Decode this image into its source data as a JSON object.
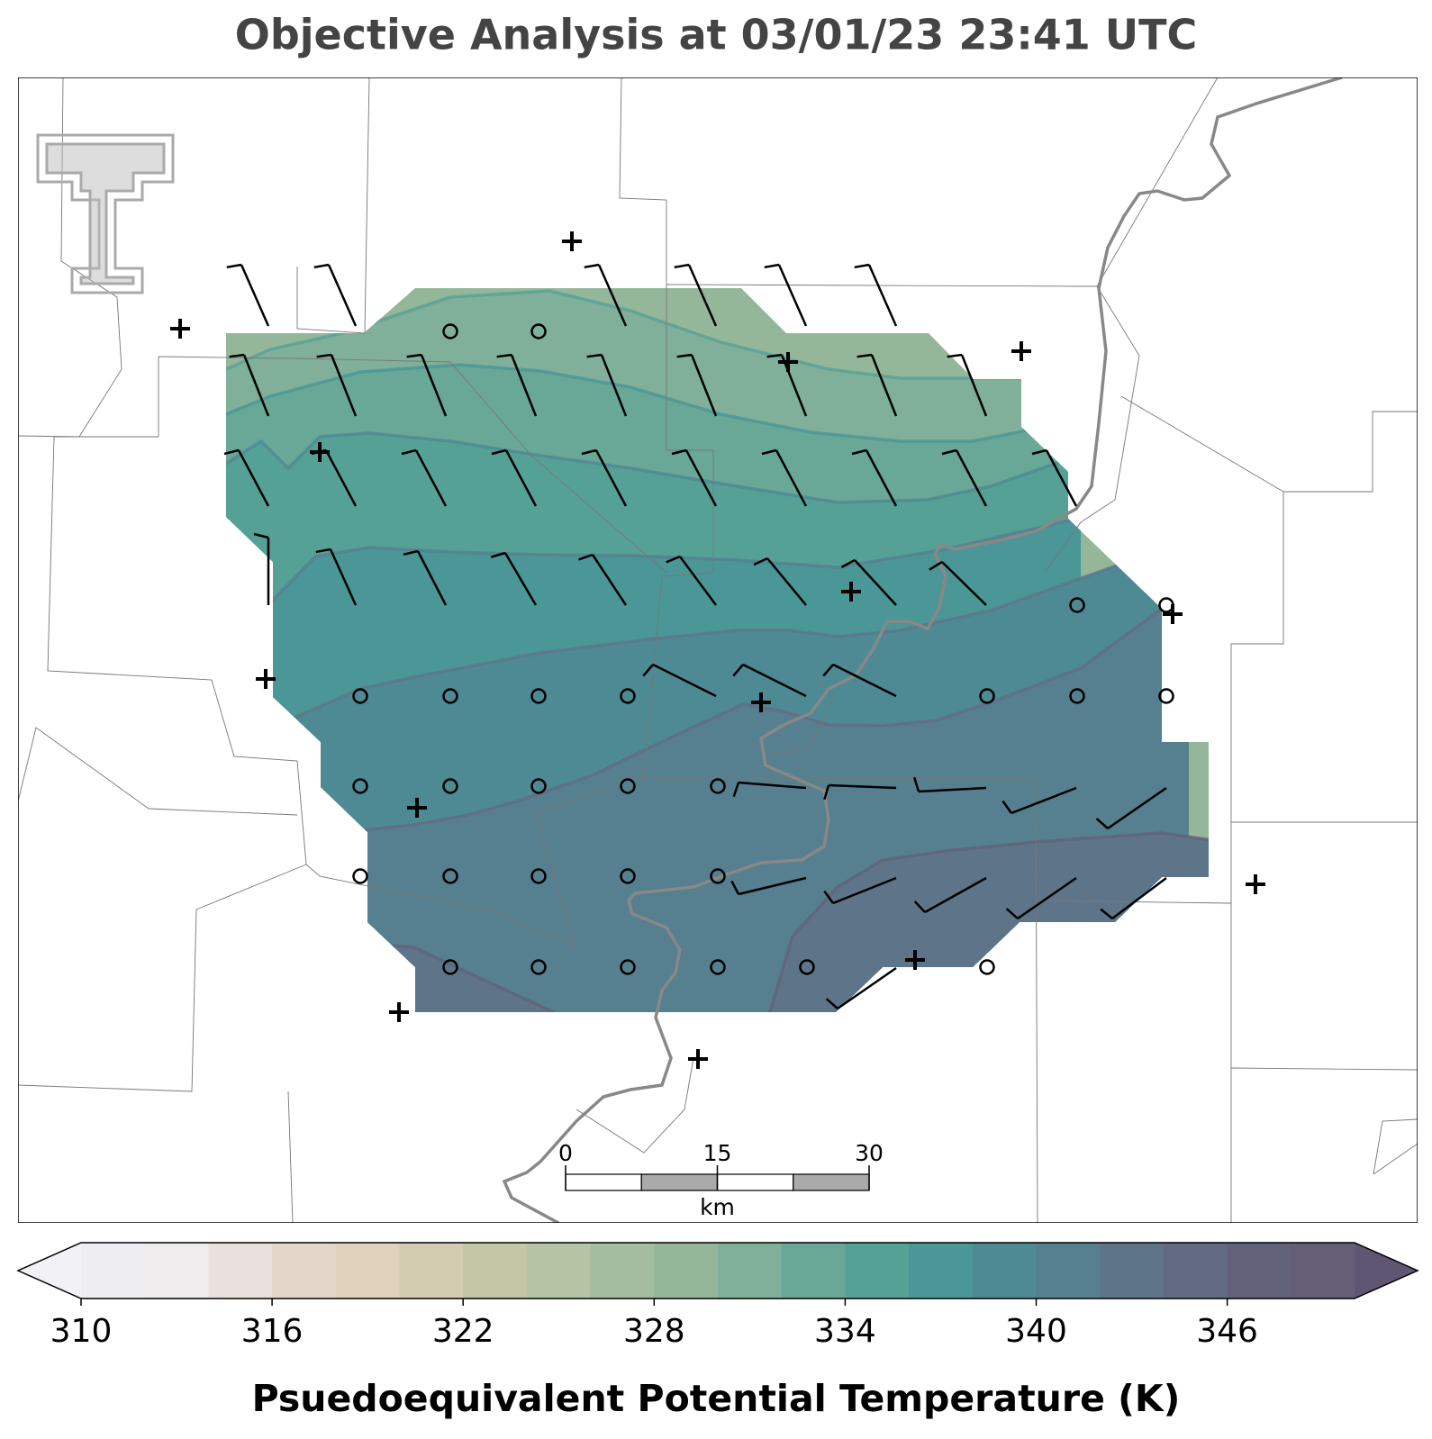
{
  "title": "Objective Analysis at 03/01/23 23:41 UTC",
  "colorbar": {
    "label": "Psuedoequivalent Potential Temperature (K)",
    "lim": [
      310,
      350
    ],
    "ticks": [
      310,
      316,
      322,
      328,
      334,
      340,
      346
    ],
    "colors": [
      "#eeedf2",
      "#efecee",
      "#e8e1dd",
      "#e3d7c9",
      "#e0d2bb",
      "#d3ccb0",
      "#c3c7a6",
      "#b4c4a5",
      "#a3bd9e",
      "#94b79a",
      "#80b099",
      "#69a797",
      "#56a196",
      "#4b9697",
      "#4e8a94",
      "#56808f",
      "#5e7589",
      "#636b82",
      "#62627a",
      "#645e76"
    ],
    "under_color": "#f2f1f6",
    "over_color": "#5f5673"
  },
  "scale_bar": {
    "ticks": [
      0,
      15,
      30
    ],
    "unit": "km"
  }
}
